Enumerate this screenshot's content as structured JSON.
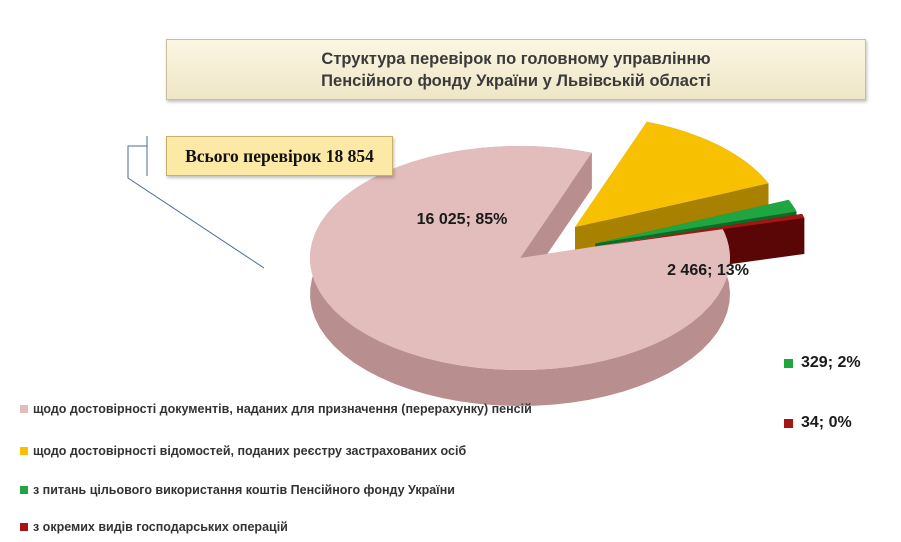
{
  "chart_data": {
    "type": "pie",
    "title_lines": [
      "Структура перевірок по головному управлінню",
      "Пенсійного фонду України у Львівській області"
    ],
    "total_label": "Всього перевірок 18 854",
    "slices": [
      {
        "name": "щодо достовірності документів, наданих для призначення (перерахунку) пенсій",
        "value": 16025,
        "label": "16 025; 85%",
        "color": "#e3bcbc",
        "side_color": "#b88e8e"
      },
      {
        "name": "щодо достовірності відомостей, поданих реєстру застрахованих осіб",
        "value": 2466,
        "label": "2 466; 13%",
        "color": "#f7c000",
        "side_color": "#a88100"
      },
      {
        "name": "з питань цільового використання коштів Пенсійного фонду України",
        "value": 329,
        "label": "329; 2%",
        "color": "#1fa642",
        "side_color": "#0e6a26"
      },
      {
        "name": "з окремих видів господарських операцій",
        "value": 34,
        "label": "34; 0%",
        "color": "#a51515",
        "side_color": "#5a0606"
      }
    ],
    "legend_placement": "bottom-left"
  }
}
